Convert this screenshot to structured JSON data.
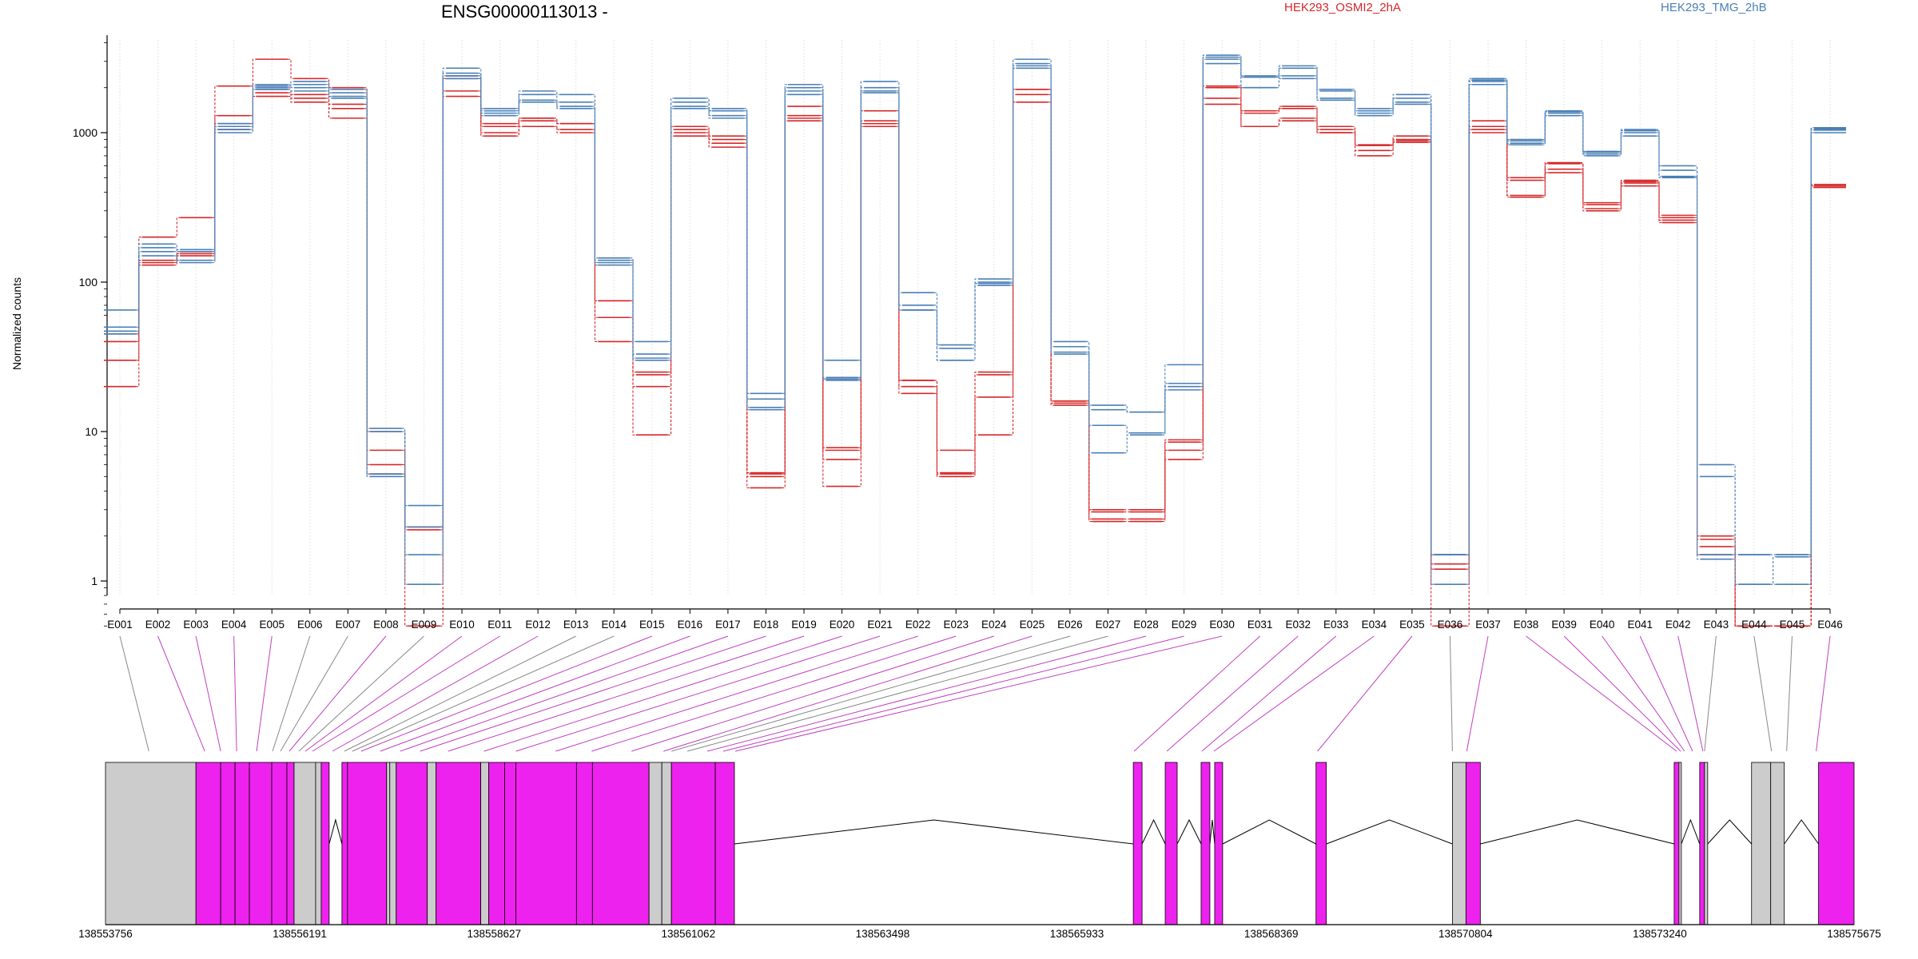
{
  "chart_data": {
    "type": "line",
    "title": "ENSG00000113013 -",
    "ylabel": "Normalized counts",
    "xlabel": "",
    "yscale": "log",
    "ylim": [
      0.45,
      4000
    ],
    "yticks": [
      1,
      10,
      100,
      1000
    ],
    "grid": "vertical",
    "legend_placement": "top",
    "categories": [
      "E001",
      "E002",
      "E003",
      "E004",
      "E005",
      "E006",
      "E007",
      "E008",
      "E009",
      "E010",
      "E011",
      "E012",
      "E013",
      "E014",
      "E015",
      "E016",
      "E017",
      "E018",
      "E019",
      "E020",
      "E021",
      "E022",
      "E023",
      "E024",
      "E025",
      "E026",
      "E027",
      "E028",
      "E029",
      "E030",
      "E031",
      "E032",
      "E033",
      "E034",
      "E035",
      "E036",
      "E037",
      "E038",
      "E039",
      "E040",
      "E041",
      "E042",
      "E043",
      "E044",
      "E045",
      "E046"
    ],
    "groups": [
      {
        "name": "HEK293_OSMI2_2hA",
        "color": "#d62728",
        "replicates": [
          [
            40,
            140,
            160,
            1300,
            1950,
            1800,
            1550,
            7.5,
            2.2,
            2300,
            1100,
            1250,
            1150,
            75,
            25,
            1050,
            900,
            5.2,
            1300,
            7.5,
            1200,
            22,
            5.2,
            25,
            1950,
            16,
            2.9,
            2.9,
            8.5,
            2000,
            1350,
            1450,
            1050,
            820,
            900,
            1.3,
            1100,
            480,
            620,
            330,
            470,
            270,
            1.9,
            0.5,
            0.5,
            450
          ],
          [
            30,
            135,
            155,
            1150,
            1850,
            1700,
            1450,
            6.0,
            2.3,
            1900,
            1000,
            1200,
            1050,
            58,
            20,
            1000,
            850,
            5.0,
            1250,
            6.5,
            1150,
            20,
            5.3,
            17,
            1800,
            15.5,
            2.6,
            2.6,
            7.5,
            1700,
            1100,
            1250,
            1000,
            760,
            880,
            1.2,
            1050,
            380,
            570,
            310,
            460,
            260,
            1.7,
            0.5,
            0.5,
            440
          ],
          [
            20,
            130,
            150,
            1050,
            1750,
            1600,
            1250,
            5.2,
            0.5,
            1750,
            950,
            1100,
            1000,
            40,
            9.5,
            950,
            800,
            4.2,
            1200,
            4.3,
            1100,
            18,
            5.0,
            9.5,
            1600,
            15.0,
            2.5,
            2.5,
            6.5,
            1550,
            1100,
            1200,
            1000,
            700,
            860,
            0.5,
            1000,
            370,
            540,
            300,
            440,
            250,
            1.5,
            0.5,
            0.5,
            430
          ],
          [
            45,
            200,
            270,
            2050,
            3100,
            2300,
            2000,
            10,
            2.3,
            2400,
            1150,
            1250,
            1150,
            75,
            24,
            1100,
            950,
            5.3,
            1500,
            7.8,
            1400,
            22,
            7.5,
            24,
            1950,
            16,
            3.0,
            3.0,
            8.8,
            2050,
            1400,
            1500,
            1100,
            830,
            950,
            1.5,
            1200,
            500,
            630,
            340,
            480,
            280,
            2.0,
            0.5,
            0.5,
            450
          ]
        ]
      },
      {
        "name": "HEK293_TMG_2hB",
        "color": "#4a7fb5",
        "replicates": [
          [
            65,
            180,
            165,
            1150,
            2100,
            2200,
            1950,
            10.5,
            3.2,
            2700,
            1450,
            1900,
            1800,
            145,
            40,
            1700,
            1450,
            18,
            2100,
            30,
            2200,
            85,
            38,
            105,
            3100,
            40,
            15,
            13.5,
            28,
            3300,
            2400,
            2800,
            1950,
            1450,
            1800,
            1.5,
            2300,
            900,
            1400,
            750,
            1050,
            600,
            6.0,
            1.5,
            1.5,
            1080
          ],
          [
            50,
            170,
            160,
            1100,
            2000,
            2100,
            1850,
            10,
            2.3,
            2500,
            1400,
            1800,
            1600,
            140,
            33,
            1600,
            1400,
            16.5,
            2000,
            23,
            2000,
            70,
            36,
            100,
            2900,
            37,
            14,
            13.5,
            21,
            3200,
            2350,
            2700,
            1900,
            1400,
            1700,
            1.5,
            2250,
            880,
            1380,
            740,
            1030,
            560,
            5.0,
            1.5,
            1.5,
            1060
          ],
          [
            47,
            160,
            140,
            1050,
            2050,
            2000,
            1750,
            5.2,
            1.5,
            2400,
            1350,
            1650,
            1500,
            135,
            31,
            1500,
            1300,
            14.5,
            1900,
            22.5,
            1900,
            65,
            30,
            98,
            2800,
            34,
            11,
            9.8,
            20,
            3100,
            2000,
            2400,
            1700,
            1350,
            1600,
            1.5,
            2200,
            850,
            1350,
            720,
            1000,
            510,
            1.5,
            0.95,
            1.45,
            1040
          ],
          [
            45,
            150,
            135,
            1000,
            1950,
            1900,
            1700,
            5.0,
            0.95,
            2300,
            1300,
            1600,
            1450,
            130,
            30,
            1450,
            1250,
            14,
            1800,
            22,
            1850,
            65,
            30,
            95,
            2700,
            33,
            7.2,
            9.5,
            19,
            2900,
            2000,
            2300,
            1650,
            1300,
            1550,
            0.95,
            2100,
            830,
            1300,
            700,
            950,
            500,
            1.4,
            0.95,
            0.95,
            1000
          ]
        ]
      }
    ],
    "exon_mapping_lines": [
      {
        "exon": "E001",
        "gx": 138554300,
        "color": "#888888"
      },
      {
        "exon": "E002",
        "gx": 138555000,
        "color": "#c040c0"
      },
      {
        "exon": "E003",
        "gx": 138555200,
        "color": "#c040c0"
      },
      {
        "exon": "E004",
        "gx": 138555400,
        "color": "#c040c0"
      },
      {
        "exon": "E005",
        "gx": 138555650,
        "color": "#c040c0"
      },
      {
        "exon": "E006",
        "gx": 138555850,
        "color": "#888888"
      },
      {
        "exon": "E007",
        "gx": 138555950,
        "color": "#888888"
      },
      {
        "exon": "E008",
        "gx": 138556060,
        "color": "#c040c0"
      },
      {
        "exon": "E009",
        "gx": 138556180,
        "color": "#888888"
      },
      {
        "exon": "E010",
        "gx": 138556260,
        "color": "#c040c0"
      },
      {
        "exon": "E011",
        "gx": 138556350,
        "color": "#c040c0"
      },
      {
        "exon": "E012",
        "gx": 138556600,
        "color": "#c040c0"
      },
      {
        "exon": "E013",
        "gx": 138556750,
        "color": "#888888"
      },
      {
        "exon": "E014",
        "gx": 138556850,
        "color": "#888888"
      },
      {
        "exon": "E015",
        "gx": 138556960,
        "color": "#c040c0"
      },
      {
        "exon": "E016",
        "gx": 138557200,
        "color": "#c040c0"
      },
      {
        "exon": "E017",
        "gx": 138557450,
        "color": "#c040c0"
      },
      {
        "exon": "E018",
        "gx": 138557700,
        "color": "#c040c0"
      },
      {
        "exon": "E019",
        "gx": 138558050,
        "color": "#c040c0"
      },
      {
        "exon": "E020",
        "gx": 138558500,
        "color": "#c040c0"
      },
      {
        "exon": "E021",
        "gx": 138558900,
        "color": "#c040c0"
      },
      {
        "exon": "E022",
        "gx": 138559400,
        "color": "#c040c0"
      },
      {
        "exon": "E023",
        "gx": 138559850,
        "color": "#c040c0"
      },
      {
        "exon": "E024",
        "gx": 138560350,
        "color": "#c040c0"
      },
      {
        "exon": "E025",
        "gx": 138560750,
        "color": "#c040c0"
      },
      {
        "exon": "E026",
        "gx": 138560850,
        "color": "#888888"
      },
      {
        "exon": "E027",
        "gx": 138561050,
        "color": "#888888"
      },
      {
        "exon": "E028",
        "gx": 138561300,
        "color": "#c040c0"
      },
      {
        "exon": "E029",
        "gx": 138561500,
        "color": "#c040c0"
      },
      {
        "exon": "E030",
        "gx": 138561650,
        "color": "#c040c0"
      },
      {
        "exon": "E031",
        "gx": 138566650,
        "color": "#c040c0"
      },
      {
        "exon": "E032",
        "gx": 138567060,
        "color": "#c040c0"
      },
      {
        "exon": "E033",
        "gx": 138567500,
        "color": "#c040c0"
      },
      {
        "exon": "E034",
        "gx": 138567650,
        "color": "#c040c0"
      },
      {
        "exon": "E035",
        "gx": 138568950,
        "color": "#c040c0"
      },
      {
        "exon": "E036",
        "gx": 138570640,
        "color": "#888888"
      },
      {
        "exon": "E037",
        "gx": 138570820,
        "color": "#c040c0"
      },
      {
        "exon": "E038",
        "gx": 138573450,
        "color": "#c040c0"
      },
      {
        "exon": "E039",
        "gx": 138573500,
        "color": "#c040c0"
      },
      {
        "exon": "E040",
        "gx": 138573550,
        "color": "#c040c0"
      },
      {
        "exon": "E041",
        "gx": 138573650,
        "color": "#c040c0"
      },
      {
        "exon": "E042",
        "gx": 138573780,
        "color": "#c040c0"
      },
      {
        "exon": "E043",
        "gx": 138573800,
        "color": "#888888"
      },
      {
        "exon": "E044",
        "gx": 138574640,
        "color": "#888888"
      },
      {
        "exon": "E045",
        "gx": 138574830,
        "color": "#888888"
      },
      {
        "exon": "E046",
        "gx": 138575200,
        "color": "#c040c0"
      }
    ],
    "gene_model": {
      "xlim": [
        138553756,
        138575675
      ],
      "coordinate_ticks": [
        138553756,
        138556191,
        138558627,
        138561062,
        138563498,
        138565933,
        138568369,
        138570804,
        138573240,
        138575675
      ],
      "boxes": [
        {
          "start": 138553756,
          "end": 138554890,
          "fill": "#cccccc"
        },
        {
          "start": 138554890,
          "end": 138555200,
          "fill": "#ee22ee"
        },
        {
          "start": 138555200,
          "end": 138555380,
          "fill": "#ee22ee"
        },
        {
          "start": 138555380,
          "end": 138555560,
          "fill": "#ee22ee"
        },
        {
          "start": 138555560,
          "end": 138555840,
          "fill": "#ee22ee"
        },
        {
          "start": 138555840,
          "end": 138556030,
          "fill": "#ee22ee"
        },
        {
          "start": 138556030,
          "end": 138556120,
          "fill": "#ee22ee"
        },
        {
          "start": 138556120,
          "end": 138556390,
          "fill": "#cccccc"
        },
        {
          "start": 138556390,
          "end": 138556460,
          "fill": "#cccccc"
        },
        {
          "start": 138556460,
          "end": 138556560,
          "fill": "#ee22ee"
        },
        {
          "start": 138556720,
          "end": 138556790,
          "fill": "#ee22ee"
        },
        {
          "start": 138556790,
          "end": 138557280,
          "fill": "#ee22ee"
        },
        {
          "start": 138557280,
          "end": 138557320,
          "fill": "#cccccc"
        },
        {
          "start": 138557320,
          "end": 138557400,
          "fill": "#cccccc"
        },
        {
          "start": 138557400,
          "end": 138557790,
          "fill": "#ee22ee"
        },
        {
          "start": 138557790,
          "end": 138557900,
          "fill": "#cccccc"
        },
        {
          "start": 138557900,
          "end": 138558460,
          "fill": "#ee22ee"
        },
        {
          "start": 138558460,
          "end": 138558560,
          "fill": "#cccccc"
        },
        {
          "start": 138558560,
          "end": 138558760,
          "fill": "#ee22ee"
        },
        {
          "start": 138558760,
          "end": 138558900,
          "fill": "#ee22ee"
        },
        {
          "start": 138558900,
          "end": 138559660,
          "fill": "#ee22ee"
        },
        {
          "start": 138559660,
          "end": 138559860,
          "fill": "#ee22ee"
        },
        {
          "start": 138559860,
          "end": 138560570,
          "fill": "#ee22ee"
        },
        {
          "start": 138560570,
          "end": 138560730,
          "fill": "#cccccc"
        },
        {
          "start": 138560730,
          "end": 138560850,
          "fill": "#cccccc"
        },
        {
          "start": 138560850,
          "end": 138561400,
          "fill": "#ee22ee"
        },
        {
          "start": 138561400,
          "end": 138561640,
          "fill": "#ee22ee"
        },
        {
          "start": 138566640,
          "end": 138566750,
          "fill": "#ee22ee"
        },
        {
          "start": 138567040,
          "end": 138567190,
          "fill": "#ee22ee"
        },
        {
          "start": 138567490,
          "end": 138567600,
          "fill": "#ee22ee"
        },
        {
          "start": 138567660,
          "end": 138567760,
          "fill": "#ee22ee"
        },
        {
          "start": 138568930,
          "end": 138569060,
          "fill": "#ee22ee"
        },
        {
          "start": 138570640,
          "end": 138570810,
          "fill": "#cccccc"
        },
        {
          "start": 138570810,
          "end": 138570990,
          "fill": "#ee22ee"
        },
        {
          "start": 138573420,
          "end": 138573480,
          "fill": "#ee22ee"
        },
        {
          "start": 138573480,
          "end": 138573510,
          "fill": "#cccccc"
        },
        {
          "start": 138573740,
          "end": 138573800,
          "fill": "#ee22ee"
        },
        {
          "start": 138573800,
          "end": 138573840,
          "fill": "#cccccc"
        },
        {
          "start": 138574390,
          "end": 138574630,
          "fill": "#cccccc"
        },
        {
          "start": 138574630,
          "end": 138574800,
          "fill": "#cccccc"
        },
        {
          "start": 138575230,
          "end": 138575675,
          "fill": "#ee22ee"
        }
      ],
      "introns": [
        [
          138556560,
          138556720
        ],
        [
          138561640,
          138566640
        ],
        [
          138566750,
          138567040
        ],
        [
          138567190,
          138567490
        ],
        [
          138567600,
          138567660
        ],
        [
          138567760,
          138568930
        ],
        [
          138569060,
          138570640
        ],
        [
          138570990,
          138573420
        ],
        [
          138573510,
          138573740
        ],
        [
          138573840,
          138574390
        ],
        [
          138574800,
          138575230
        ]
      ]
    }
  }
}
